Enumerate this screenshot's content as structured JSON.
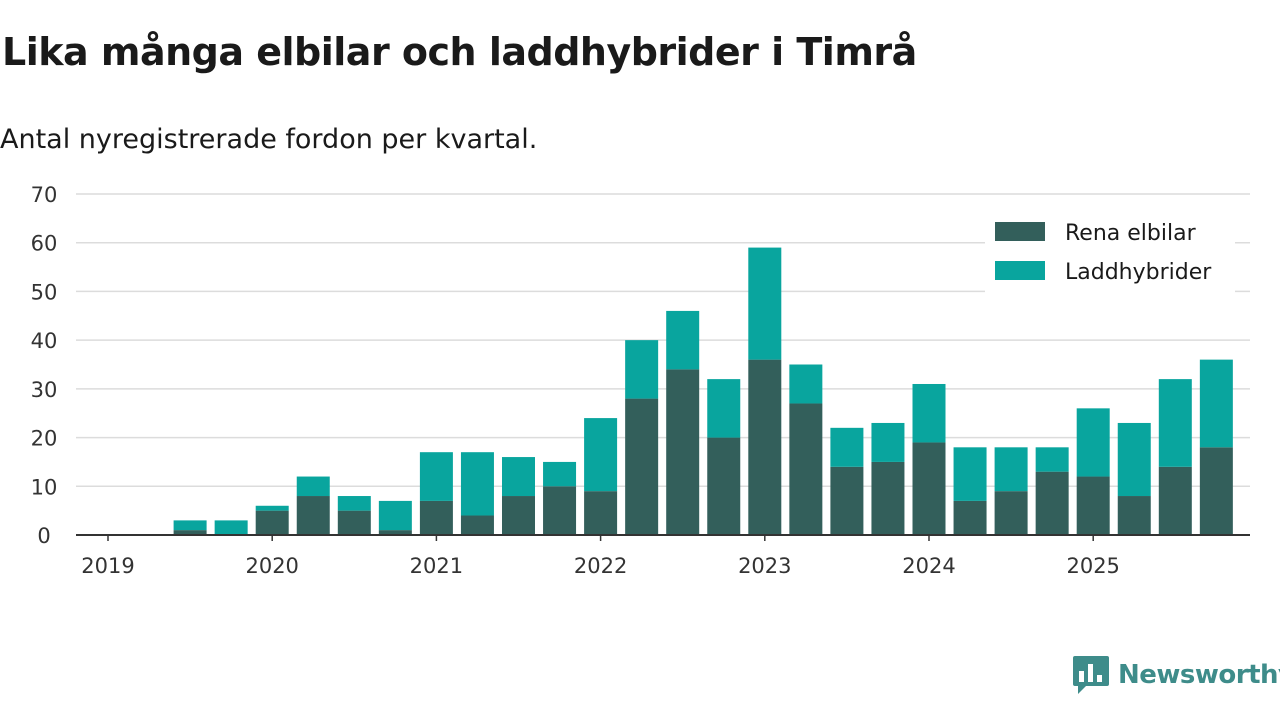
{
  "header": {
    "title": "Lika många elbilar och laddhybrider i Timrå",
    "subtitle": "Antal nyregistrerade fordon per kvartal."
  },
  "brand": {
    "name": "Newsworthy",
    "color": "#3e8c8a"
  },
  "chart_data": {
    "type": "bar",
    "stacked": true,
    "title": "Lika många elbilar och laddhybrider i Timrå",
    "subtitle": "Antal nyregistrerade fordon per kvartal.",
    "xlabel": "",
    "ylabel": "",
    "ylim": [
      0,
      70
    ],
    "yticks": [
      0,
      10,
      20,
      30,
      40,
      50,
      60,
      70
    ],
    "xticks": [
      "2019",
      "2020",
      "2021",
      "2022",
      "2023",
      "2024",
      "2025"
    ],
    "grid": true,
    "legend_position": "top-right",
    "categories": [
      "2019 Q2",
      "2019 Q3",
      "2019 Q4",
      "2020 Q1",
      "2020 Q2",
      "2020 Q3",
      "2020 Q4",
      "2021 Q1",
      "2021 Q2",
      "2021 Q3",
      "2021 Q4",
      "2022 Q1",
      "2022 Q2",
      "2022 Q3",
      "2022 Q4",
      "2023 Q1",
      "2023 Q2",
      "2023 Q3",
      "2023 Q4",
      "2024 Q1",
      "2024 Q2",
      "2024 Q3",
      "2024 Q4",
      "2025 Q1",
      "2025 Q2",
      "2025 Q3"
    ],
    "series": [
      {
        "name": "Rena elbilar",
        "color": "#335f5b",
        "values": [
          1,
          0,
          5,
          8,
          5,
          1,
          7,
          4,
          8,
          10,
          9,
          28,
          34,
          20,
          36,
          27,
          14,
          15,
          19,
          7,
          9,
          13,
          12,
          8,
          14,
          18
        ]
      },
      {
        "name": "Laddhybrider",
        "color": "#09a59e",
        "values": [
          2,
          3,
          1,
          4,
          3,
          6,
          10,
          13,
          8,
          5,
          15,
          12,
          12,
          12,
          23,
          8,
          8,
          8,
          12,
          11,
          9,
          5,
          14,
          15,
          18,
          18
        ]
      }
    ]
  }
}
